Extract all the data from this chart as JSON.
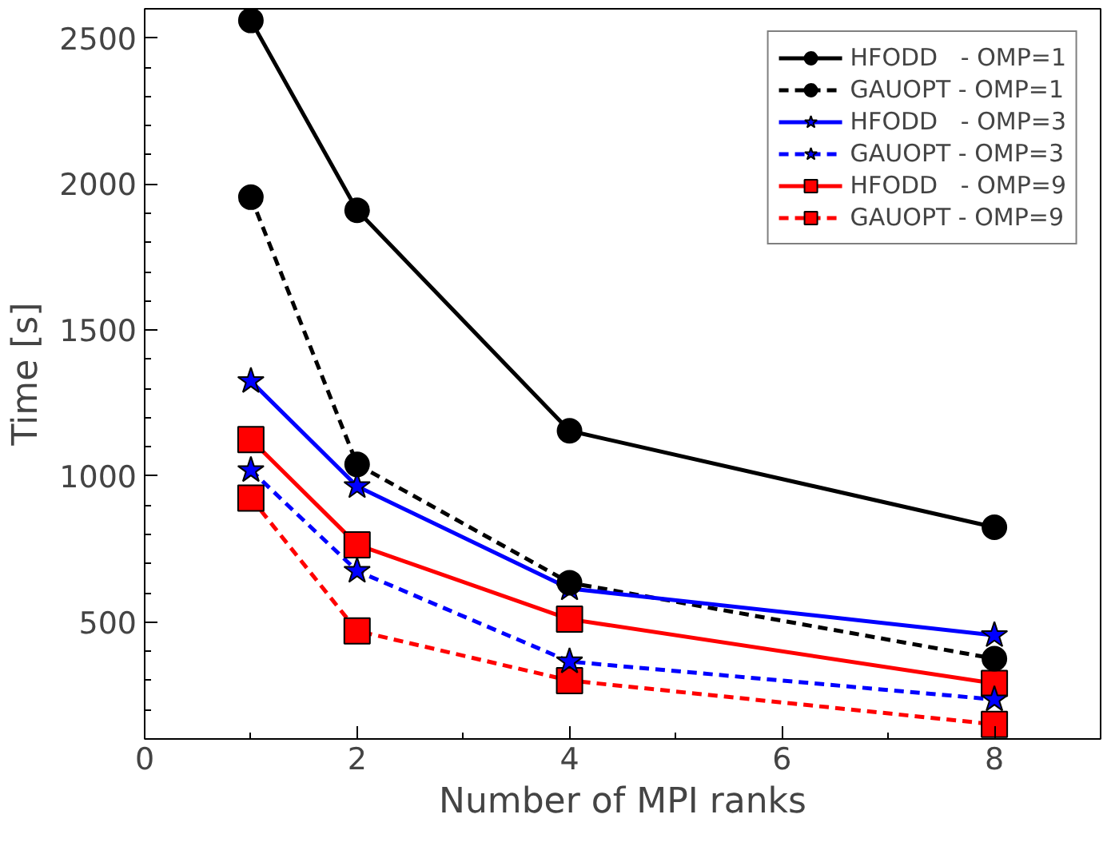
{
  "chart_data": {
    "type": "line",
    "xlabel": "Number of MPI ranks",
    "ylabel": "Time [s]",
    "x": [
      1,
      2,
      4,
      8
    ],
    "xlim": [
      0,
      9
    ],
    "xticks": [
      0,
      2,
      4,
      6,
      8
    ],
    "ylim": [
      100,
      2600
    ],
    "yticks": [
      500,
      1000,
      1500,
      2000,
      2500
    ],
    "grid": false,
    "legend": "top right",
    "series": [
      {
        "name": "HFODD   - OMP=1",
        "color": "#000000",
        "marker": "circle",
        "line_style": "solid",
        "values": [
          2560,
          1910,
          1155,
          825
        ]
      },
      {
        "name": "GAUOPT - OMP=1",
        "color": "#000000",
        "marker": "circle",
        "line_style": "dashed",
        "values": [
          1955,
          1040,
          635,
          375
        ]
      },
      {
        "name": "HFODD   - OMP=3",
        "color": "#0000ff",
        "marker": "star",
        "line_style": "solid",
        "values": [
          1325,
          965,
          615,
          455
        ]
      },
      {
        "name": "GAUOPT - OMP=3",
        "color": "#0000ff",
        "marker": "star",
        "line_style": "dashed",
        "values": [
          1020,
          675,
          365,
          235
        ]
      },
      {
        "name": "HFODD   - OMP=9",
        "color": "#ff0000",
        "marker": "square",
        "line_style": "solid",
        "values": [
          1125,
          765,
          510,
          290
        ]
      },
      {
        "name": "GAUOPT - OMP=9",
        "color": "#ff0000",
        "marker": "square",
        "line_style": "dashed",
        "values": [
          925,
          470,
          300,
          150
        ]
      }
    ]
  }
}
